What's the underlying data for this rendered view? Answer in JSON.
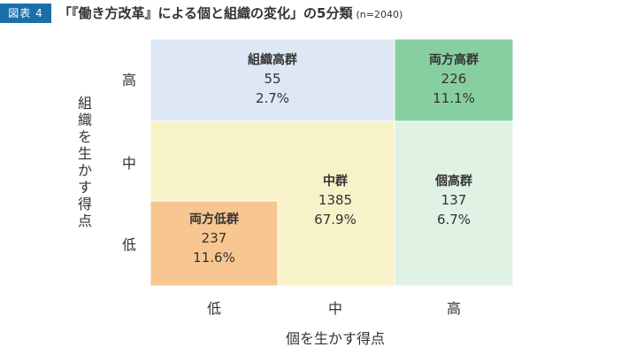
{
  "header": {
    "figure_label": "図表 4",
    "title": "「『働き方改革』による個と組織の変化」の5分類",
    "n_label": "(n=2040)"
  },
  "chart_data": {
    "type": "table",
    "xlabel": "個を生かす得点",
    "ylabel": "組織を生かす得点",
    "x_categories": [
      "低",
      "中",
      "高"
    ],
    "y_categories": [
      "高",
      "中",
      "低"
    ],
    "groups": [
      {
        "name": "組織高群",
        "count": "55",
        "percent": "2.7%",
        "color": "#dde8f4"
      },
      {
        "name": "両方高群",
        "count": "226",
        "percent": "11.1%",
        "color": "#88cfa0"
      },
      {
        "name": "中群",
        "count": "1385",
        "percent": "67.9%",
        "color": "#f8f2c8"
      },
      {
        "name": "個高群",
        "count": "137",
        "percent": "6.7%",
        "color": "#dff2e4"
      },
      {
        "name": "両方低群",
        "count": "237",
        "percent": "11.6%",
        "color": "#f8c690"
      }
    ]
  }
}
